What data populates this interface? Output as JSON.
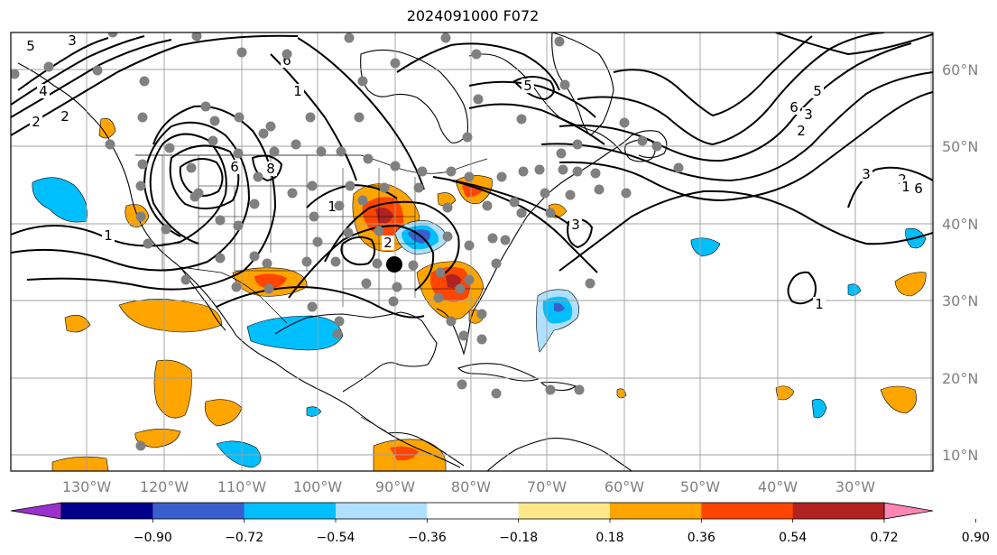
{
  "map": {
    "title": "2024091000 F072",
    "longitude_labels": [
      "130°W",
      "120°W",
      "110°W",
      "100°W",
      "90°W",
      "80°W",
      "70°W",
      "60°W",
      "50°W",
      "40°W",
      "30°W"
    ],
    "latitude_labels": [
      "60°N",
      "50°N",
      "40°N",
      "30°N",
      "20°N",
      "10°N"
    ],
    "contour_labels": [
      "5",
      "3",
      "6",
      "8",
      "4",
      "2",
      "6",
      "5",
      "6",
      "2",
      "1",
      "1",
      "3",
      "2",
      "6",
      "5",
      "3",
      "2",
      "1",
      "2",
      "1",
      "3",
      "1"
    ],
    "storm_marker": "filled-circle",
    "station_marker_color": "#808080",
    "contour_color": "#000000",
    "grid_color": "#a0a0a0",
    "coastline_color": "#000000"
  },
  "colorbar": {
    "tick_labels": [
      "−0.90",
      "−0.72",
      "−0.54",
      "−0.36",
      "−0.18",
      "0.18",
      "0.36",
      "0.54",
      "0.72",
      "0.90"
    ],
    "colors": [
      "#9932cc",
      "#00008b",
      "#3a5fcd",
      "#00bfff",
      "#b0e0ff",
      "#ffffff",
      "#ffe88a",
      "#ffa500",
      "#ff4500",
      "#b22222",
      "#ff85b4"
    ],
    "extend": "both"
  },
  "fill_colors": {
    "light_orange": "#ffe88a",
    "orange": "#ffa500",
    "red_orange": "#ff4500",
    "dark_red": "#b22222",
    "light_blue": "#b0e0ff",
    "sky_blue": "#00bfff",
    "royal_blue": "#3a5fcd",
    "purple": "#9932cc"
  }
}
